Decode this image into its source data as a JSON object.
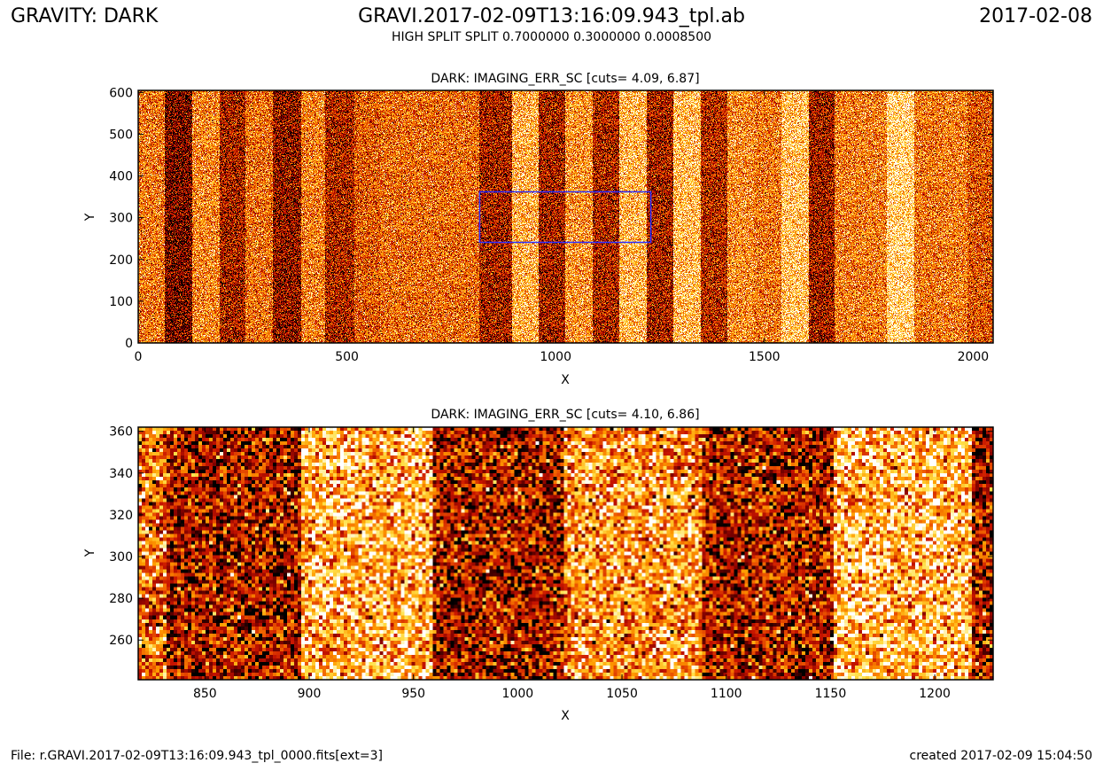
{
  "header": {
    "left": "GRAVITY: DARK",
    "center": "GRAVI.2017-02-09T13:16:09.943_tpl.ab",
    "right": "2017-02-08",
    "subtitle": "HIGH SPLIT SPLIT 0.7000000 0.3000000 0.0008500"
  },
  "footer": {
    "left": "File: r.GRAVI.2017-02-09T13:16:09.943_tpl_0000.fits[ext=3]",
    "right": "created 2017-02-09 15:04:50"
  },
  "colors": {
    "colormap": [
      "#000000",
      "#7a0000",
      "#c81400",
      "#ee5a00",
      "#ff9d00",
      "#ffe14a",
      "#ffffff"
    ],
    "zoom_box": "#3030ff",
    "axes": "#000000"
  },
  "chart_data": [
    {
      "type": "heatmap",
      "title": "DARK: IMAGING_ERR_SC [cuts= 4.09, 6.87]",
      "xlabel": "X",
      "ylabel": "Y",
      "xlim": [
        0,
        2048
      ],
      "ylim": [
        0,
        605
      ],
      "xticks": [
        0,
        500,
        1000,
        1500,
        2000
      ],
      "yticks": [
        0,
        100,
        200,
        300,
        400,
        500,
        600
      ],
      "cuts": [
        4.09,
        6.87
      ],
      "colormap": "heat",
      "zoom_box": {
        "x": [
          818,
          1228
        ],
        "y": [
          241,
          362
        ]
      },
      "stripes": [
        {
          "x": [
            0,
            64
          ],
          "level": 0.58
        },
        {
          "x": [
            64,
            130
          ],
          "level": 0.18
        },
        {
          "x": [
            130,
            195
          ],
          "level": 0.62
        },
        {
          "x": [
            195,
            257
          ],
          "level": 0.3
        },
        {
          "x": [
            257,
            323
          ],
          "level": 0.56
        },
        {
          "x": [
            323,
            390
          ],
          "level": 0.24
        },
        {
          "x": [
            390,
            447
          ],
          "level": 0.6
        },
        {
          "x": [
            447,
            517
          ],
          "level": 0.32
        },
        {
          "x": [
            517,
            580
          ],
          "level": 0.5
        },
        {
          "x": [
            580,
            818
          ],
          "level": 0.55
        },
        {
          "x": [
            818,
            895
          ],
          "level": 0.3
        },
        {
          "x": [
            895,
            960
          ],
          "level": 0.74
        },
        {
          "x": [
            960,
            1022
          ],
          "level": 0.3
        },
        {
          "x": [
            1022,
            1088
          ],
          "level": 0.66
        },
        {
          "x": [
            1088,
            1152
          ],
          "level": 0.32
        },
        {
          "x": [
            1152,
            1218
          ],
          "level": 0.76
        },
        {
          "x": [
            1218,
            1282
          ],
          "level": 0.3
        },
        {
          "x": [
            1282,
            1348
          ],
          "level": 0.78
        },
        {
          "x": [
            1348,
            1412
          ],
          "level": 0.34
        },
        {
          "x": [
            1412,
            1476
          ],
          "level": 0.64
        },
        {
          "x": [
            1476,
            1540
          ],
          "level": 0.58
        },
        {
          "x": [
            1540,
            1606
          ],
          "level": 0.8
        },
        {
          "x": [
            1606,
            1668
          ],
          "level": 0.28
        },
        {
          "x": [
            1668,
            1794
          ],
          "level": 0.6
        },
        {
          "x": [
            1794,
            1860
          ],
          "level": 0.86
        },
        {
          "x": [
            1860,
            1922
          ],
          "level": 0.58
        },
        {
          "x": [
            1922,
            1986
          ],
          "level": 0.6
        },
        {
          "x": [
            1986,
            2048
          ],
          "level": 0.48
        }
      ]
    },
    {
      "type": "heatmap",
      "title": "DARK: IMAGING_ERR_SC [cuts= 4.10, 6.86]",
      "xlabel": "X",
      "ylabel": "Y",
      "xlim": [
        818,
        1228
      ],
      "ylim": [
        241,
        362
      ],
      "xticks": [
        850,
        900,
        950,
        1000,
        1050,
        1100,
        1150,
        1200
      ],
      "yticks": [
        260,
        280,
        300,
        320,
        340,
        360
      ],
      "cuts": [
        4.1,
        6.86
      ],
      "colormap": "heat",
      "stripes": [
        {
          "x": [
            818,
            832
          ],
          "level": 0.55
        },
        {
          "x": [
            832,
            896
          ],
          "level": 0.3
        },
        {
          "x": [
            896,
            960
          ],
          "level": 0.74
        },
        {
          "x": [
            960,
            1023
          ],
          "level": 0.3
        },
        {
          "x": [
            1023,
            1088
          ],
          "level": 0.66
        },
        {
          "x": [
            1088,
            1152
          ],
          "level": 0.32
        },
        {
          "x": [
            1152,
            1218
          ],
          "level": 0.76
        },
        {
          "x": [
            1218,
            1228
          ],
          "level": 0.3
        }
      ]
    }
  ]
}
